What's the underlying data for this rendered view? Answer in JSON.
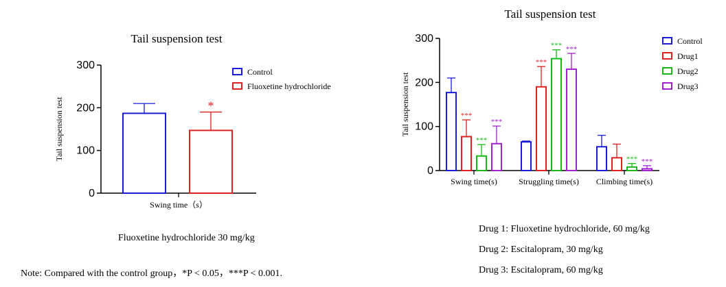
{
  "chart_data": [
    {
      "type": "bar",
      "title": "Tail suspension test",
      "xlabel": "Swing time（s）",
      "ylabel": "Tail suspension test",
      "ylim": [
        0,
        300
      ],
      "yticks": [
        "0",
        "100",
        "200",
        "300"
      ],
      "legend_position": "top-right",
      "categories": [
        "Swing time（s）"
      ],
      "series": [
        {
          "name": "Control",
          "color": "#1a1adb",
          "values": [
            187
          ],
          "error": [
            23
          ],
          "sig": ""
        },
        {
          "name": "Fluoxetine hydrochloride",
          "color": "#e02020",
          "values": [
            147
          ],
          "error": [
            43
          ],
          "sig": "*"
        }
      ],
      "grid": false
    },
    {
      "type": "bar",
      "title": "Tail suspension test",
      "xlabel": "",
      "ylabel": "Tail suspension test",
      "ylim": [
        0,
        300
      ],
      "yticks": [
        "0",
        "100",
        "200",
        "300"
      ],
      "legend_position": "top-right",
      "categories": [
        "Swing time(s)",
        "Struggling time(s)",
        "Climbing time(s)"
      ],
      "series": [
        {
          "name": "Control",
          "color": "#1a1adb",
          "values": [
            177,
            65,
            54
          ],
          "error": [
            33,
            2,
            26
          ],
          "sig": [
            "",
            "",
            ""
          ]
        },
        {
          "name": "Drug1",
          "color": "#e02020",
          "values": [
            77,
            190,
            29
          ],
          "error": [
            38,
            46,
            31
          ],
          "sig": [
            "***",
            "***",
            ""
          ]
        },
        {
          "name": "Drug2",
          "color": "#18b818",
          "values": [
            33,
            254,
            8
          ],
          "error": [
            26,
            20,
            8
          ],
          "sig": [
            "***",
            "***",
            "***"
          ]
        },
        {
          "name": "Drug3",
          "color": "#a020d0",
          "values": [
            61,
            230,
            4
          ],
          "error": [
            40,
            36,
            7
          ],
          "sig": [
            "***",
            "***",
            "***"
          ]
        }
      ],
      "grid": false
    }
  ],
  "captions": {
    "left": "Fluoxetine hydrochloride 30 mg/kg",
    "note": "Note: Compared with the  control group，*P < 0.05，***P < 0.001.",
    "drug1": "Drug 1: Fluoxetine hydrochloride, 60 mg/kg",
    "drug2": "Drug 2: Escitalopram, 30 mg/kg",
    "drug3": "Drug 3: Escitalopram, 60 mg/kg"
  }
}
